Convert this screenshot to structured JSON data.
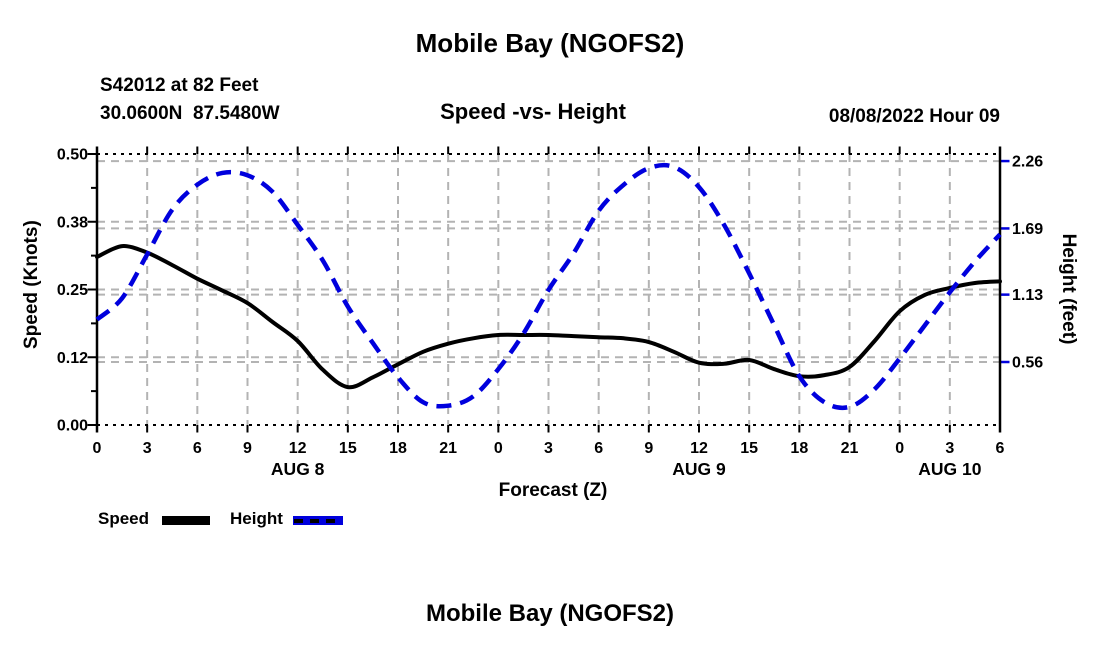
{
  "titles": {
    "top": "Mobile Bay (NGOFS2)",
    "bottom": "Mobile Bay (NGOFS2)",
    "subtitle": "Speed -vs- Height",
    "station_line1": "S42012 at 82 Feet",
    "station_line2": "30.0600N  87.5480W",
    "datetime": "08/08/2022 Hour 09"
  },
  "chart_data": {
    "type": "line",
    "title": "Speed -vs- Height",
    "xlabel": "Forecast (Z)",
    "x_hours": [
      0,
      1.5,
      3,
      4.5,
      6,
      7.5,
      9,
      10.5,
      12,
      13.5,
      15,
      16.5,
      18,
      19.5,
      21,
      22.5,
      24,
      25.5,
      27,
      28.5,
      30,
      31.5,
      33,
      34.5,
      36,
      37.5,
      39,
      40.5,
      42,
      43.5,
      45,
      46.5,
      48,
      49.5,
      51,
      52.5,
      54
    ],
    "series": [
      {
        "name": "Speed",
        "axis": "left",
        "units": "Knots",
        "color": "#000000",
        "style": "solid",
        "values": [
          0.31,
          0.33,
          0.318,
          0.295,
          0.27,
          0.248,
          0.225,
          0.19,
          0.155,
          0.102,
          0.07,
          0.088,
          0.112,
          0.135,
          0.15,
          0.16,
          0.166,
          0.166,
          0.166,
          0.164,
          0.162,
          0.16,
          0.153,
          0.135,
          0.115,
          0.113,
          0.12,
          0.103,
          0.09,
          0.092,
          0.107,
          0.155,
          0.21,
          0.24,
          0.253,
          0.262,
          0.265
        ]
      },
      {
        "name": "Height",
        "axis": "right",
        "units": "feet",
        "color": "#0000dd",
        "style": "dashed",
        "values": [
          0.92,
          1.1,
          1.47,
          1.85,
          2.06,
          2.16,
          2.14,
          2.0,
          1.72,
          1.42,
          1.03,
          0.72,
          0.43,
          0.22,
          0.19,
          0.27,
          0.5,
          0.8,
          1.17,
          1.48,
          1.84,
          2.06,
          2.2,
          2.21,
          2.04,
          1.72,
          1.31,
          0.87,
          0.44,
          0.22,
          0.18,
          0.33,
          0.59,
          0.87,
          1.15,
          1.41,
          1.64
        ]
      }
    ],
    "x_axis": {
      "label": "Forecast (Z)",
      "tick_hours": [
        0,
        3,
        6,
        9,
        12,
        15,
        18,
        21,
        24,
        27,
        30,
        33,
        36,
        39,
        42,
        45,
        48,
        51,
        54
      ],
      "tick_labels": [
        "0",
        "3",
        "6",
        "9",
        "12",
        "15",
        "18",
        "21",
        "0",
        "3",
        "6",
        "9",
        "12",
        "15",
        "18",
        "21",
        "0",
        "3",
        "6"
      ],
      "day_labels": [
        {
          "label": "AUG 8",
          "hour": 12
        },
        {
          "label": "AUG 9",
          "hour": 36
        },
        {
          "label": "AUG 10",
          "hour": 51
        }
      ]
    },
    "left_axis": {
      "label": "Speed (Knots)",
      "tick_labels": [
        "0.00",
        "0.12",
        "0.25",
        "0.38",
        "0.50"
      ],
      "range": [
        0,
        0.5
      ],
      "grid": true
    },
    "right_axis": {
      "label": "Height (feet)",
      "tick_labels": [
        "0.56",
        "1.13",
        "1.69",
        "2.26"
      ],
      "tick_values": [
        0.56,
        1.13,
        1.69,
        2.26
      ],
      "grid": true
    },
    "legend": [
      {
        "label": "Speed",
        "color": "#000000",
        "style": "solid"
      },
      {
        "label": "Height",
        "color": "#0000dd",
        "style": "dashed"
      }
    ],
    "colors": {
      "speed": "#000000",
      "height": "#0000dd",
      "grid": "#b3b3b3"
    },
    "legend_position": "bottom-left"
  }
}
